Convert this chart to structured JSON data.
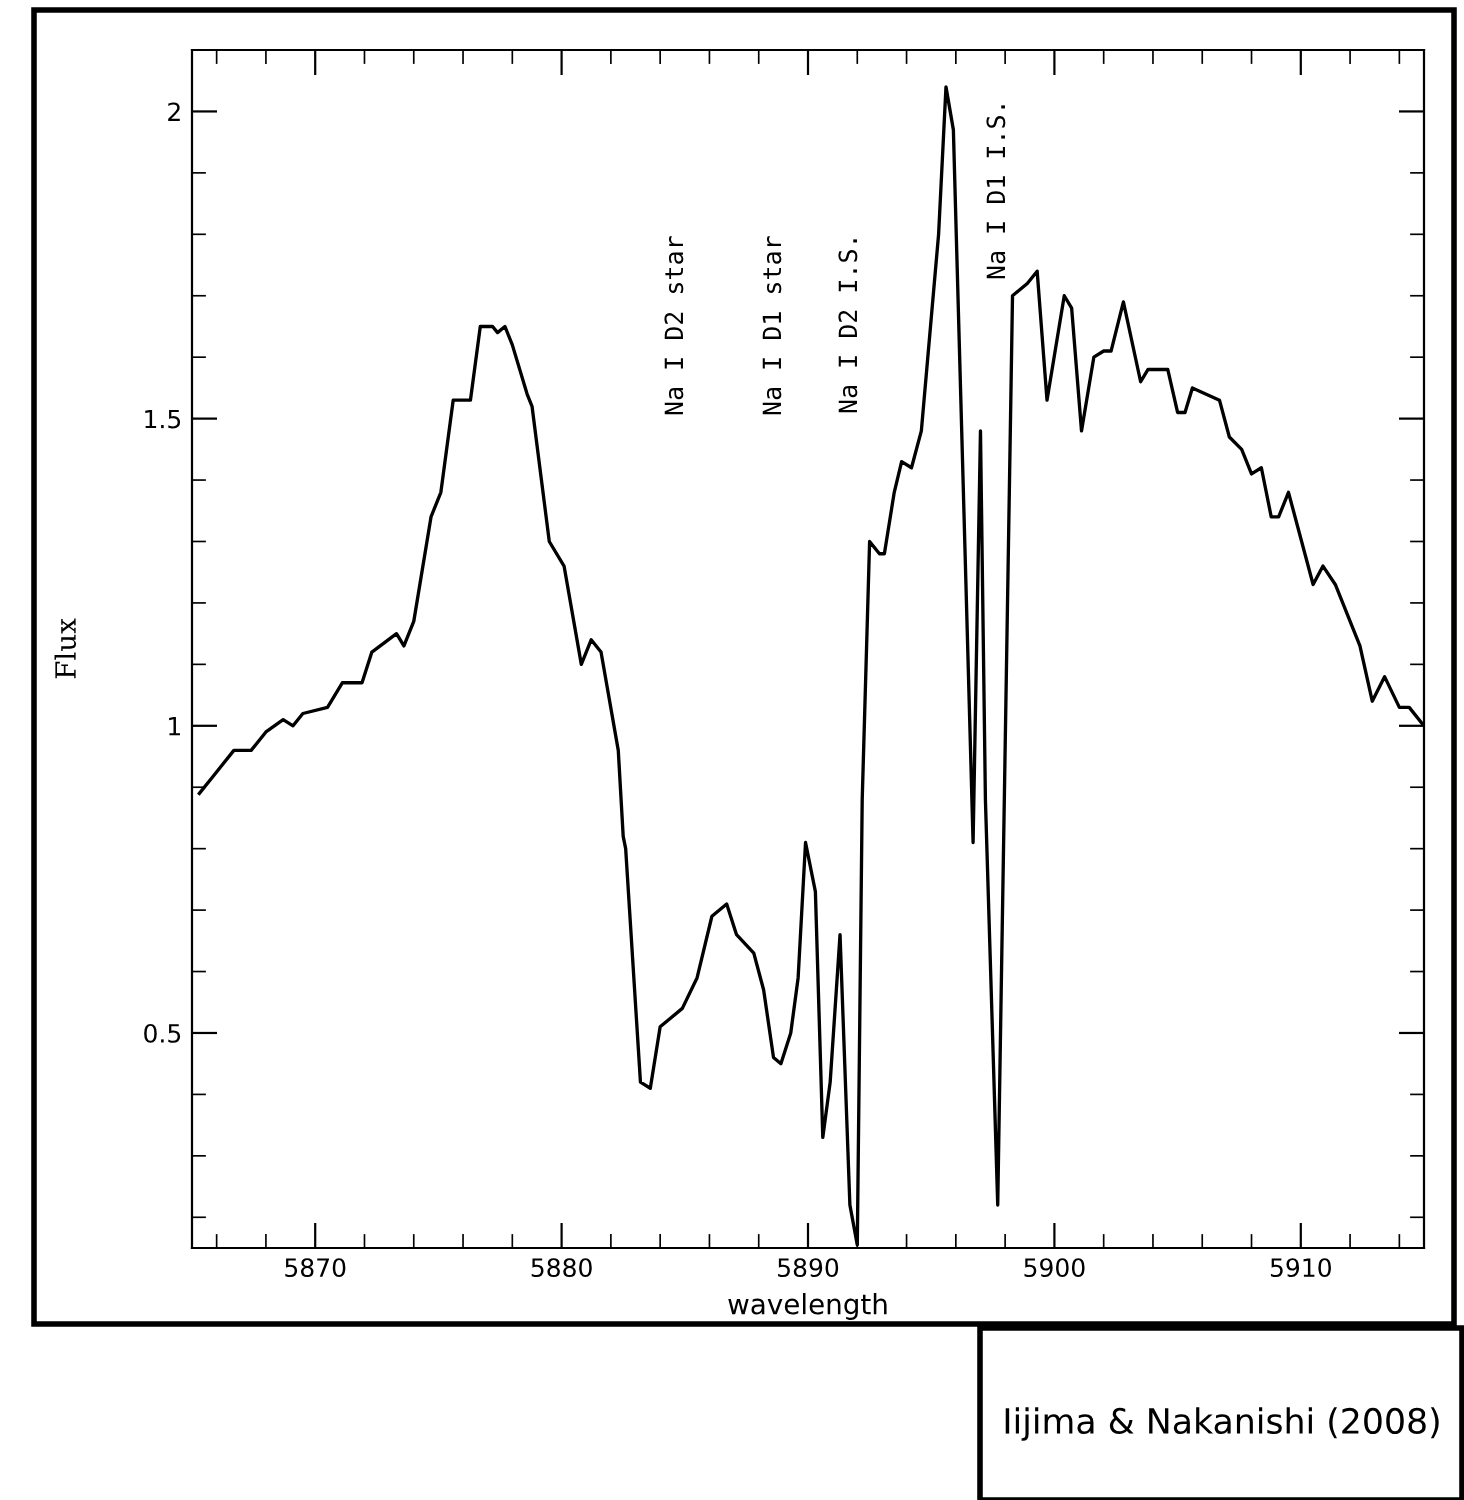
{
  "chart_data": {
    "type": "line",
    "xlabel": "wavelength",
    "ylabel": "Flux",
    "x": [
      5865.3,
      5865.9,
      5866.7,
      5867.4,
      5868.0,
      5868.7,
      5869.1,
      5869.5,
      5870.5,
      5871.1,
      5871.9,
      5872.3,
      5873.3,
      5873.6,
      5874.0,
      5874.7,
      5875.1,
      5875.6,
      5876.3,
      5876.7,
      5877.2,
      5877.4,
      5877.7,
      5878.0,
      5878.6,
      5878.8,
      5879.5,
      5880.1,
      5880.8,
      5881.2,
      5881.6,
      5882.3,
      5882.5,
      5882.6,
      5883.2,
      5883.6,
      5884.0,
      5884.9,
      5885.5,
      5886.1,
      5886.7,
      5887.1,
      5887.8,
      5888.2,
      5888.6,
      5888.9,
      5889.3,
      5889.6,
      5889.9,
      5890.3,
      5890.6,
      5890.9,
      5891.3,
      5891.7,
      5892.0,
      5892.2,
      5892.5,
      5892.9,
      5893.1,
      5893.5,
      5893.8,
      5894.2,
      5894.6,
      5895.3,
      5895.6,
      5895.9,
      5896.7,
      5897.0,
      5897.2,
      5897.7,
      5898.3,
      5898.9,
      5899.3,
      5899.7,
      5900.4,
      5900.7,
      5901.1,
      5901.6,
      5902.0,
      5902.3,
      5902.8,
      5903.5,
      5903.8,
      5904.6,
      5905.0,
      5905.3,
      5905.6,
      5906.7,
      5907.1,
      5907.6,
      5908.0,
      5908.4,
      5908.8,
      5909.1,
      5909.5,
      5910.5,
      5910.9,
      5911.4,
      5912.4,
      5912.9,
      5913.4,
      5914.0,
      5914.4,
      5915.0
    ],
    "series": [
      {
        "color": "#000000",
        "values": [
          0.89,
          0.92,
          0.96,
          0.96,
          0.99,
          1.01,
          1.0,
          1.02,
          1.03,
          1.07,
          1.07,
          1.12,
          1.15,
          1.13,
          1.17,
          1.34,
          1.38,
          1.53,
          1.53,
          1.65,
          1.65,
          1.64,
          1.65,
          1.62,
          1.54,
          1.52,
          1.3,
          1.26,
          1.1,
          1.14,
          1.12,
          0.96,
          0.82,
          0.8,
          0.42,
          0.41,
          0.51,
          0.54,
          0.59,
          0.69,
          0.71,
          0.66,
          0.63,
          0.57,
          0.46,
          0.45,
          0.5,
          0.59,
          0.81,
          0.73,
          0.33,
          0.42,
          0.66,
          0.22,
          0.155,
          0.88,
          1.3,
          1.28,
          1.28,
          1.38,
          1.43,
          1.42,
          1.48,
          1.8,
          2.04,
          1.97,
          0.81,
          1.48,
          0.88,
          0.22,
          1.7,
          1.72,
          1.74,
          1.53,
          1.7,
          1.68,
          1.48,
          1.6,
          1.61,
          1.61,
          1.69,
          1.56,
          1.58,
          1.58,
          1.51,
          1.51,
          1.55,
          1.53,
          1.47,
          1.45,
          1.41,
          1.42,
          1.34,
          1.34,
          1.38,
          1.23,
          1.26,
          1.23,
          1.13,
          1.04,
          1.08,
          1.03,
          1.03,
          1.0
        ]
      }
    ],
    "xlim": [
      5865,
      5915
    ],
    "ylim": [
      0.15,
      2.1
    ],
    "xticks": [
      5870,
      5880,
      5890,
      5900,
      5910
    ],
    "yticks": [
      0.5,
      1,
      1.5,
      2
    ],
    "grid": false,
    "marker": "none",
    "line_style": "solid",
    "annotations": [
      "Na I D2 star",
      "Na I D1 star",
      "Na I D2 I.S.",
      "Na I D1 I.S.",
      "Iijima & Nakanishi (2008)"
    ]
  }
}
